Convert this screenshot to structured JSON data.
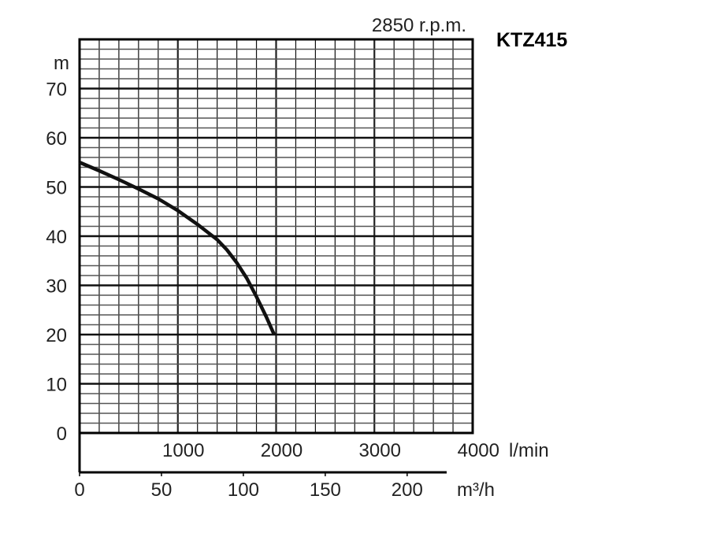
{
  "chart_data": {
    "type": "line",
    "title": "KTZ415",
    "subtitle": "2850 r.p.m.",
    "ylabel": "m",
    "xlabel": "l/min",
    "x2label": "m³/h",
    "xlim": [
      0,
      4000
    ],
    "ylim": [
      0,
      80
    ],
    "x2lim": [
      0,
      240
    ],
    "yticks": [
      "0",
      "10",
      "20",
      "30",
      "40",
      "50",
      "60",
      "70"
    ],
    "xticks": [
      "1000",
      "2000",
      "3000",
      "4000"
    ],
    "x2ticks": [
      "0",
      "50",
      "100",
      "150",
      "200"
    ],
    "grid": true,
    "series": [
      {
        "name": "KTZ415",
        "x": [
          0,
          200,
          400,
          600,
          800,
          1000,
          1200,
          1400,
          1500,
          1600,
          1700,
          1800,
          1900,
          1980
        ],
        "y": [
          55,
          53.3,
          51.5,
          49.6,
          47.6,
          45.2,
          42.4,
          39.3,
          37.2,
          34.6,
          31.5,
          27.7,
          23.6,
          20
        ]
      }
    ]
  }
}
